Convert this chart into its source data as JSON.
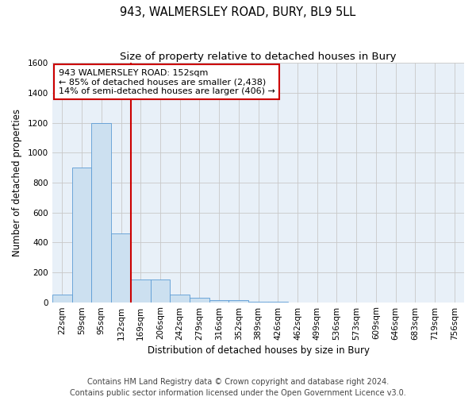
{
  "title": "943, WALMERSLEY ROAD, BURY, BL9 5LL",
  "subtitle": "Size of property relative to detached houses in Bury",
  "xlabel": "Distribution of detached houses by size in Bury",
  "ylabel": "Number of detached properties",
  "footer1": "Contains HM Land Registry data © Crown copyright and database right 2024.",
  "footer2": "Contains public sector information licensed under the Open Government Licence v3.0.",
  "bar_labels": [
    "22sqm",
    "59sqm",
    "95sqm",
    "132sqm",
    "169sqm",
    "206sqm",
    "242sqm",
    "279sqm",
    "316sqm",
    "352sqm",
    "389sqm",
    "426sqm",
    "462sqm",
    "499sqm",
    "536sqm",
    "573sqm",
    "609sqm",
    "646sqm",
    "683sqm",
    "719sqm",
    "756sqm"
  ],
  "bar_values": [
    50,
    900,
    1200,
    460,
    150,
    150,
    50,
    30,
    15,
    15,
    5,
    5,
    0,
    0,
    0,
    0,
    0,
    0,
    0,
    0,
    0
  ],
  "bar_color": "#cce0f0",
  "bar_edge_color": "#5b9bd5",
  "vline_x": 3.5,
  "vline_color": "#cc0000",
  "annotation_line1": "943 WALMERSLEY ROAD: 152sqm",
  "annotation_line2": "← 85% of detached houses are smaller (2,438)",
  "annotation_line3": "14% of semi-detached houses are larger (406) →",
  "annotation_box_color": "#cc0000",
  "ylim": [
    0,
    1600
  ],
  "yticks": [
    0,
    200,
    400,
    600,
    800,
    1000,
    1200,
    1400,
    1600
  ],
  "grid_color": "#c8c8c8",
  "background_color": "#e8f0f8",
  "title_fontsize": 10.5,
  "subtitle_fontsize": 9.5,
  "axis_label_fontsize": 8.5,
  "tick_fontsize": 7.5,
  "annotation_fontsize": 8,
  "footer_fontsize": 7
}
